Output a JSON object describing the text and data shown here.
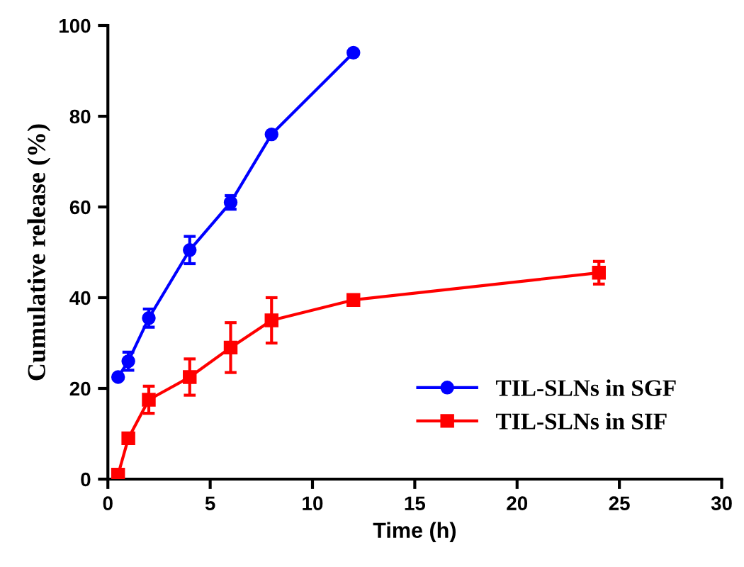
{
  "chart_data": {
    "type": "line",
    "xlabel": "Time (h)",
    "ylabel": "Cumulative release (%)",
    "xlim": [
      0,
      30
    ],
    "xticks": [
      0,
      5,
      10,
      15,
      20,
      25,
      30
    ],
    "ylim": [
      0,
      100
    ],
    "yticks": [
      0,
      20,
      40,
      60,
      80,
      100
    ],
    "grid": false,
    "legend": "bottom right",
    "series": [
      {
        "name": "TIL-SLNs in SGF",
        "color": "#0000ff",
        "marker": "circle",
        "x": [
          0.5,
          1,
          2,
          4,
          6,
          8,
          12
        ],
        "values": [
          22.5,
          26,
          35.5,
          50.5,
          61,
          76,
          94
        ],
        "errors": [
          null,
          2,
          2,
          3,
          1.5,
          null,
          null
        ]
      },
      {
        "name": "TIL-SLNs in SIF",
        "color": "#ff0000",
        "marker": "square",
        "x": [
          0.5,
          1,
          2,
          4,
          6,
          8,
          12,
          24
        ],
        "values": [
          1,
          9,
          17.5,
          22.5,
          29,
          35,
          39.5,
          45.5
        ],
        "errors": [
          null,
          null,
          3,
          4,
          5.5,
          5,
          1,
          2.5
        ]
      }
    ]
  }
}
